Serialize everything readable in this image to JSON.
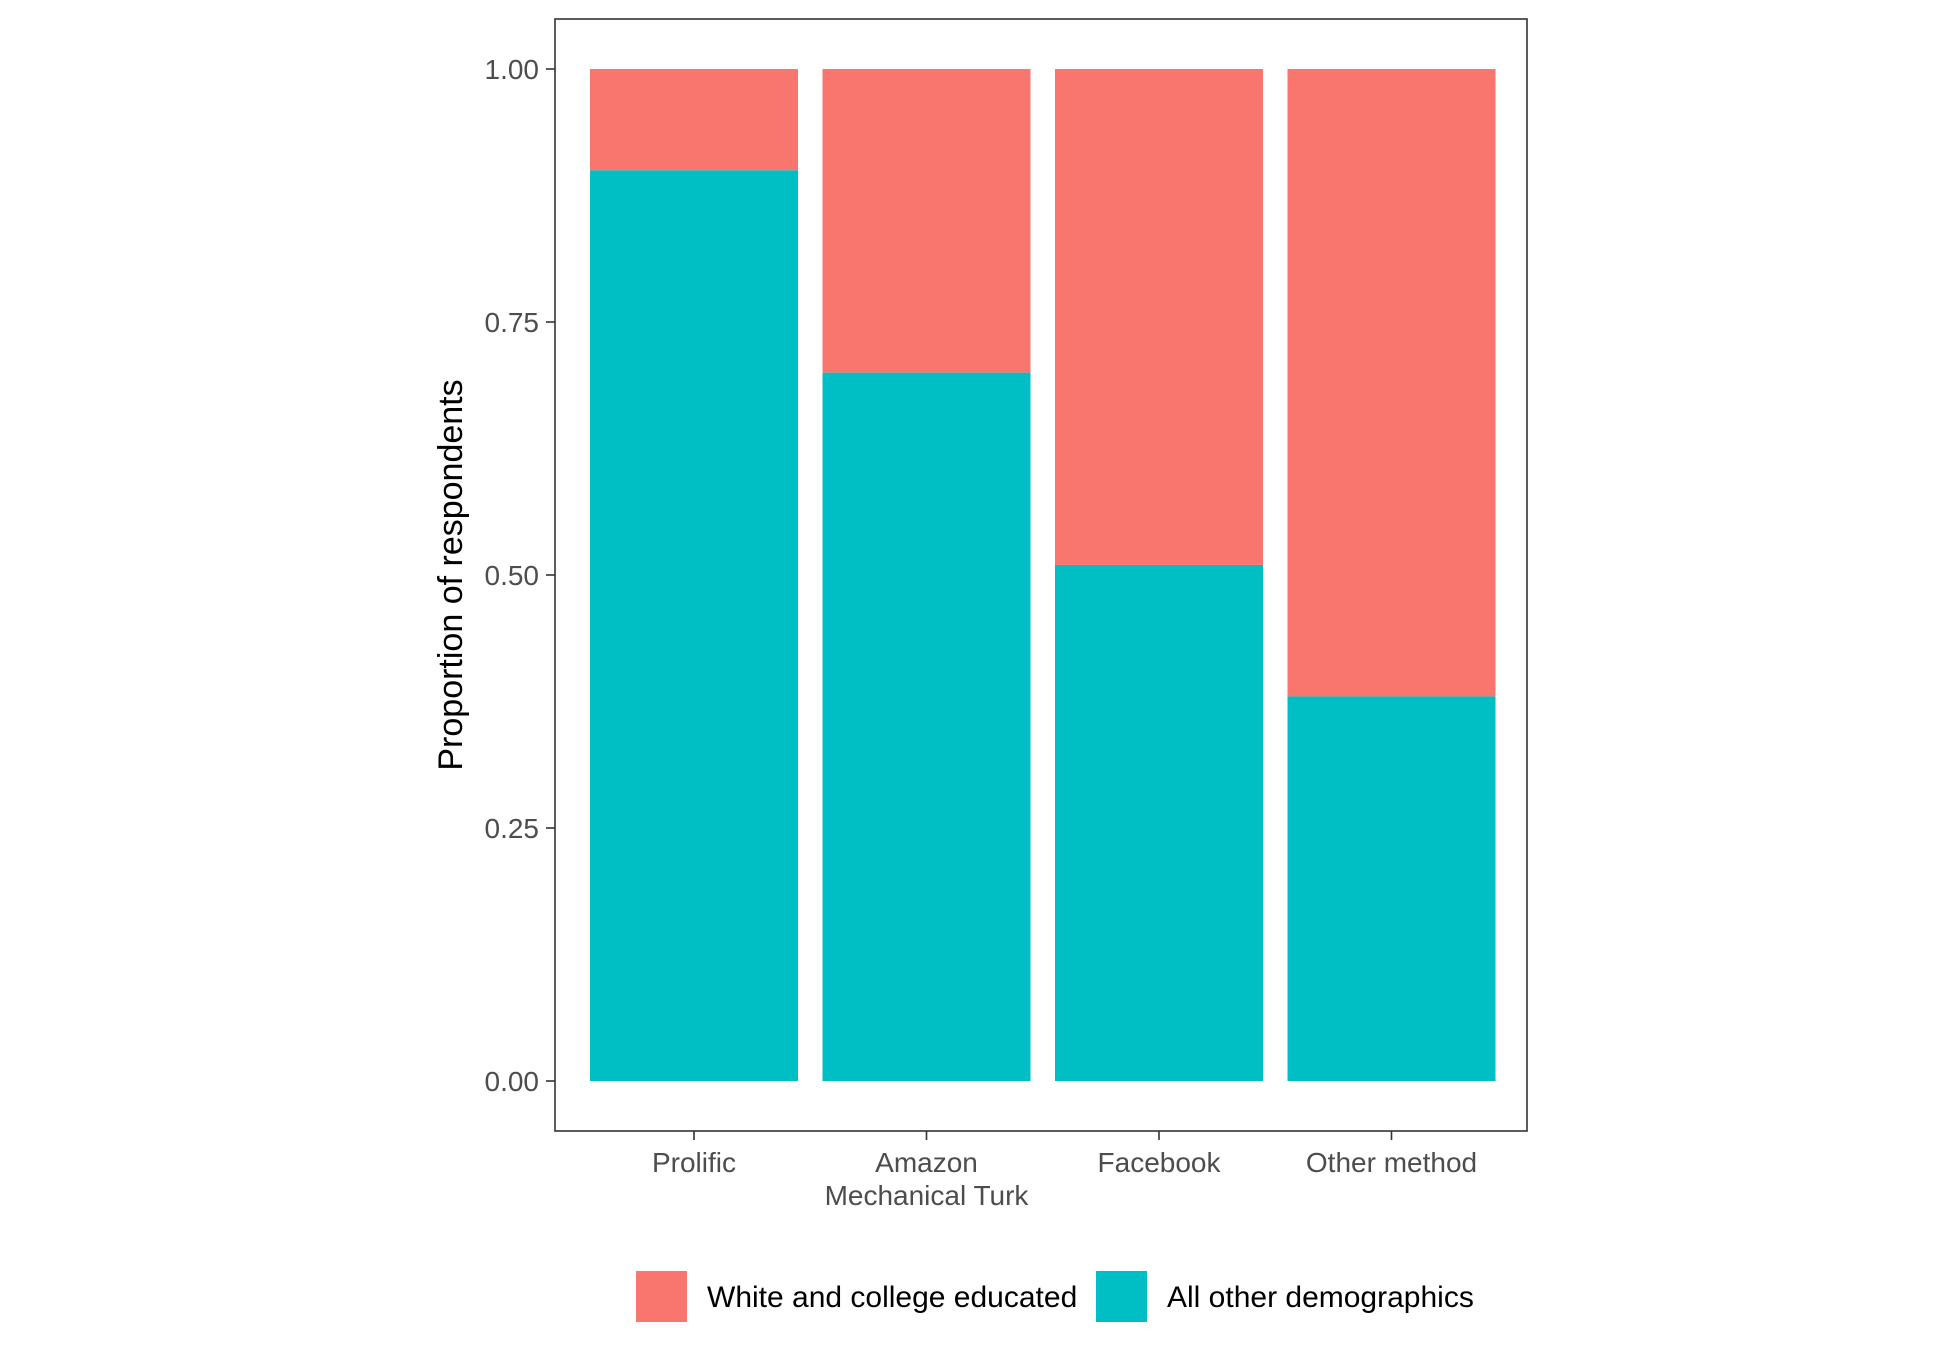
{
  "chart_data": {
    "type": "bar",
    "stacked": true,
    "title": "",
    "xlabel": "",
    "ylabel": "Proportion of respondents",
    "ylim": [
      0,
      1
    ],
    "yticks": [
      "0.00",
      "0.25",
      "0.50",
      "0.75",
      "1.00"
    ],
    "ytick_values": [
      0,
      0.25,
      0.5,
      0.75,
      1
    ],
    "grid": false,
    "legend_position": "bottom",
    "categories": [
      {
        "lines": [
          "Prolific"
        ]
      },
      {
        "lines": [
          "Amazon",
          "Mechanical Turk"
        ]
      },
      {
        "lines": [
          "Facebook"
        ]
      },
      {
        "lines": [
          "Other method"
        ]
      }
    ],
    "series": [
      {
        "name": "All other demographics",
        "color": "#00BFC4",
        "values": [
          0.9,
          0.7,
          0.51,
          0.38
        ]
      },
      {
        "name": "White and college educated",
        "color": "#F8766D",
        "values": [
          0.1,
          0.3,
          0.49,
          0.62
        ]
      }
    ],
    "legend_order": [
      1,
      0
    ]
  }
}
